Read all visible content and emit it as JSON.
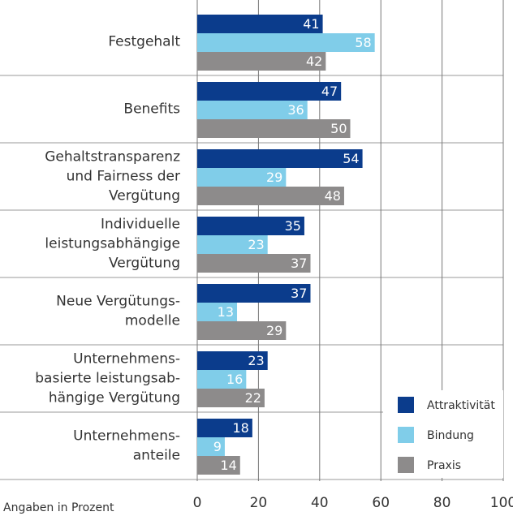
{
  "chart_data": {
    "type": "hbar",
    "categories": [
      [
        "Festgehalt"
      ],
      [
        "Benefits"
      ],
      [
        "Gehaltstransparenz",
        "und Fairness der",
        "Vergütung"
      ],
      [
        "Individuelle",
        "leistungsabhängige",
        "Vergütung"
      ],
      [
        "Neue Vergütungs-",
        "modelle"
      ],
      [
        "Unternehmens-",
        "basierte leistungsab-",
        "hängige Vergütung"
      ],
      [
        "Unternehmens-",
        "anteile"
      ]
    ],
    "series": [
      {
        "name": "Attraktivität",
        "color": "#0b3c8c",
        "values": [
          41,
          47,
          54,
          35,
          37,
          23,
          18
        ]
      },
      {
        "name": "Bindung",
        "color": "#80cde9",
        "values": [
          58,
          36,
          29,
          23,
          13,
          16,
          9
        ]
      },
      {
        "name": "Praxis",
        "color": "#8d8b8b",
        "values": [
          42,
          50,
          48,
          37,
          29,
          22,
          14
        ]
      }
    ],
    "xlim": [
      0,
      100
    ],
    "xticks": [
      0,
      20,
      40,
      60,
      80,
      100
    ],
    "grid": true,
    "legend": "lower right",
    "note": "Angaben in Prozent"
  }
}
